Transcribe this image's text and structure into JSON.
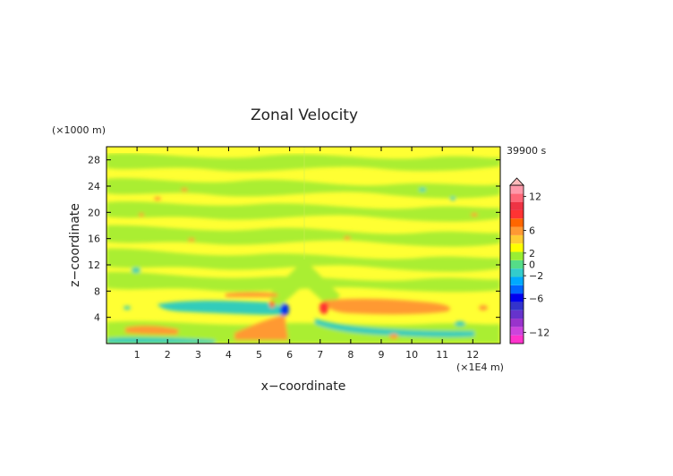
{
  "chart_data": {
    "type": "heatmap",
    "title": "Zonal Velocity",
    "xlabel": "x−coordinate",
    "ylabel": "z−coordinate",
    "x_unit": "(×1E4 m)",
    "y_unit": "(×1000 m)",
    "time_label": "39900 s",
    "xlim": [
      0,
      12.9
    ],
    "ylim": [
      0,
      30
    ],
    "x_ticks": [
      "1",
      "2",
      "3",
      "4",
      "5",
      "6",
      "7",
      "8",
      "9",
      "10",
      "11",
      "12"
    ],
    "y_ticks": [
      "4",
      "8",
      "12",
      "16",
      "20",
      "24",
      "28"
    ],
    "grid": false,
    "legend_placement": "right",
    "colorbar": {
      "range": [
        -14,
        14
      ],
      "tick_labels": [
        "12",
        "6",
        "2",
        "0",
        "−2",
        "−6",
        "−12"
      ],
      "tick_values": [
        12,
        6,
        2,
        0,
        -2,
        -6,
        -12
      ],
      "colors": [
        "#ff33cc",
        "#cc44dd",
        "#9933cc",
        "#6633cc",
        "#3333cc",
        "#0000ee",
        "#0066ff",
        "#00aaff",
        "#33cccc",
        "#55dd88",
        "#99ee33",
        "#ffff00",
        "#ffcc33",
        "#ff9933",
        "#ff6600",
        "#ff3333",
        "#ee3344",
        "#ff6677",
        "#ff99aa"
      ]
    }
  }
}
